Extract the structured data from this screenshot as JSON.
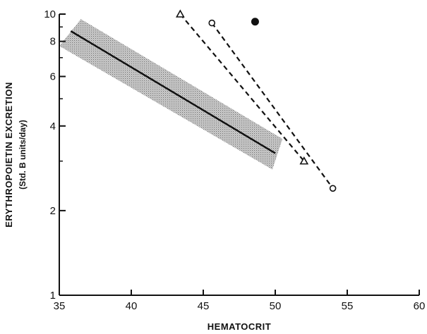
{
  "chart_data": {
    "type": "line",
    "title": "",
    "xlabel": "HEMATOCRIT",
    "ylabel": "ERYTHROPOIETIN EXCRETION",
    "ylabel_sub": "(Std. B units/day)",
    "xlim": [
      35,
      60
    ],
    "ylim": [
      1,
      10
    ],
    "yscale": "log",
    "x_ticks": [
      35,
      40,
      45,
      50,
      55,
      60
    ],
    "y_ticks": [
      1,
      2,
      4,
      6,
      8,
      10
    ],
    "y_tick_labels": [
      "1",
      "2",
      "4",
      "6",
      "8",
      "10"
    ],
    "grid": false,
    "legend": "none",
    "series": [
      {
        "style": "solid",
        "band": "shaded",
        "points": [
          [
            35.8,
            8.7
          ],
          [
            50.0,
            3.2
          ]
        ],
        "band_upper": [
          [
            36.5,
            9.6
          ],
          [
            50.5,
            3.6
          ]
        ],
        "band_lower": [
          [
            35.0,
            7.7
          ],
          [
            49.8,
            2.8
          ]
        ]
      },
      {
        "style": "dashed",
        "marker": "open-triangle",
        "points": [
          [
            43.4,
            10.0
          ],
          [
            52.0,
            3.0
          ]
        ]
      },
      {
        "style": "dashed",
        "marker": "open-circle",
        "points": [
          [
            45.6,
            9.3
          ],
          [
            54.0,
            2.4
          ]
        ]
      },
      {
        "style": "none",
        "marker": "filled-circle",
        "points": [
          [
            48.6,
            9.4
          ]
        ]
      }
    ]
  }
}
